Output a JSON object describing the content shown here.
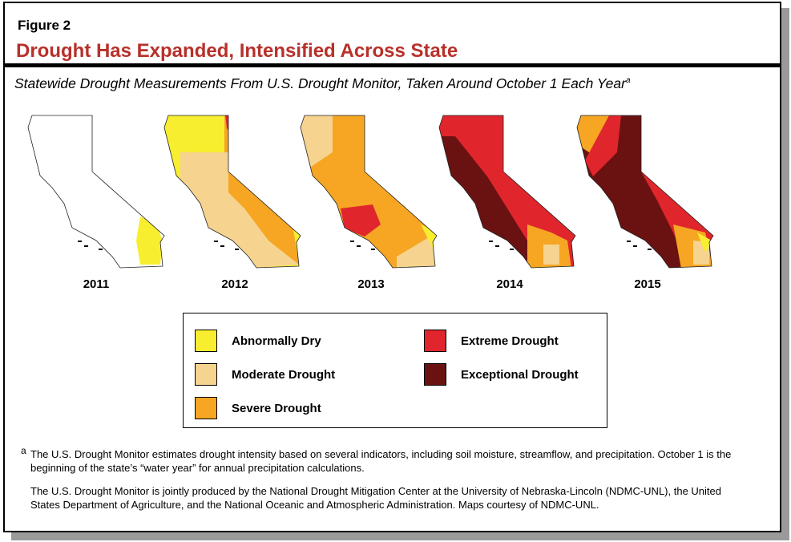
{
  "figure_label": "Figure 2",
  "title": "Drought Has Expanded, Intensified Across State",
  "subtitle": "Statewide Drought Measurements From U.S. Drought Monitor, Taken Around October 1 Each Year",
  "subtitle_marker": "a",
  "maps": [
    {
      "year": "2011"
    },
    {
      "year": "2012"
    },
    {
      "year": "2013"
    },
    {
      "year": "2014"
    },
    {
      "year": "2015"
    }
  ],
  "legend": [
    {
      "label": "Abnormally Dry",
      "color": "#f7ee2f"
    },
    {
      "label": "Moderate Drought",
      "color": "#f6d38f"
    },
    {
      "label": "Severe Drought",
      "color": "#f6a623"
    },
    {
      "label": "Extreme Drought",
      "color": "#e0262c"
    },
    {
      "label": "Exceptional Drought",
      "color": "#6a1212"
    }
  ],
  "notes": {
    "marker": "a",
    "note1": "The U.S. Drought Monitor estimates drought intensity based on several indicators, including soil moisture, streamflow, and precipitation. October 1 is the beginning of the state’s “water year” for annual precipitation calculations.",
    "note2": "The U.S. Drought Monitor is jointly produced by the National Drought Mitigation Center at the University of Nebraska-Lincoln (NDMC-UNL), the United States Department of Agriculture, and the National Oceanic and Atmospheric Administration. Maps courtesy of NDMC-UNL."
  }
}
